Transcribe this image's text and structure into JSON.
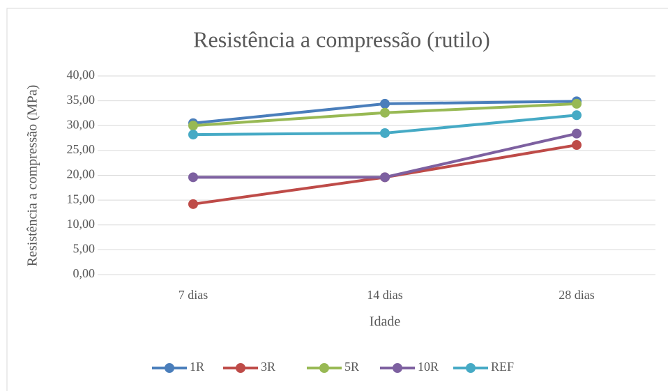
{
  "chart_data": {
    "type": "line",
    "title": "Resistência a compressão (rutilo)",
    "x_label": "Idade",
    "y_label": "Resistência a compressão (MPa)",
    "categories": [
      "7 dias",
      "14 dias",
      "28 dias"
    ],
    "series": [
      {
        "name": "1R",
        "color": "#4a7ebb",
        "values": [
          30.5,
          34.4,
          34.9
        ]
      },
      {
        "name": "3R",
        "color": "#be4b48",
        "values": [
          14.2,
          19.6,
          26.1
        ]
      },
      {
        "name": "5R",
        "color": "#98b954",
        "values": [
          30.0,
          32.6,
          34.4
        ]
      },
      {
        "name": "10R",
        "color": "#7d60a0",
        "values": [
          19.6,
          19.6,
          28.4
        ]
      },
      {
        "name": "REF",
        "color": "#46aac5",
        "values": [
          28.2,
          28.5,
          32.1
        ]
      }
    ],
    "ylim": [
      0,
      40
    ],
    "yticks": [
      {
        "value": 0,
        "label": "0,00"
      },
      {
        "value": 5,
        "label": "5,00"
      },
      {
        "value": 10,
        "label": "10,00"
      },
      {
        "value": 15,
        "label": "15,00"
      },
      {
        "value": 20,
        "label": "20,00"
      },
      {
        "value": 25,
        "label": "25,00"
      },
      {
        "value": 30,
        "label": "30,00"
      },
      {
        "value": 35,
        "label": "35,00"
      },
      {
        "value": 40,
        "label": "40,00"
      }
    ],
    "grid": true,
    "legend": "bottom"
  }
}
